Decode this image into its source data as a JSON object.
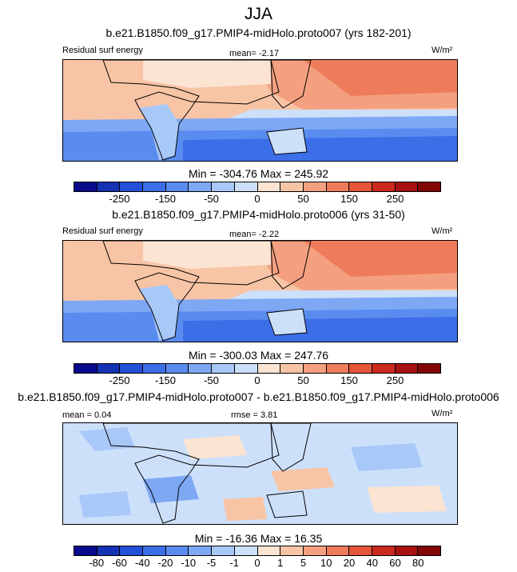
{
  "title": "JJA",
  "panels": [
    {
      "subtitle": "b.e21.B1850.f09_g17.PMIP4-midHolo.proto007 (yrs 182-201)",
      "left_label": "Residual surf energy",
      "center_label": "mean=  -2.17",
      "right_label": "W/m²",
      "minmax": "Min = -304.76 Max = 245.92"
    },
    {
      "subtitle": "b.e21.B1850.f09_g17.PMIP4-midHolo.proto006 (yrs 31-50)",
      "left_label": "Residual surf energy",
      "center_label": "mean=  -2.22",
      "right_label": "W/m²",
      "minmax": "Min = -300.03 Max = 247.76"
    },
    {
      "subtitle": "b.e21.B1850.f09_g17.PMIP4-midHolo.proto007 - b.e21.B1850.f09_g17.PMIP4-midHolo.proto006",
      "left_label": "mean =  0.04",
      "center_label": "rmse =  3.81",
      "right_label": "W/m²",
      "minmax": "Min = -16.36 Max =  16.35"
    }
  ],
  "colorbar_abs": {
    "colors": [
      "#0a0a8c",
      "#1432b4",
      "#2350d8",
      "#3c6ee8",
      "#5a8cf0",
      "#7ea8f4",
      "#a8c8f8",
      "#cde0fa",
      "#fbe4d2",
      "#f8c4a6",
      "#f4a080",
      "#ee7c5a",
      "#e4553a",
      "#cc2a1e",
      "#a81210",
      "#820606"
    ],
    "ticks": [
      "-250",
      "-150",
      "-50",
      "0",
      "50",
      "150",
      "250"
    ]
  },
  "colorbar_diff": {
    "colors": [
      "#0a0a8c",
      "#1432b4",
      "#2350d8",
      "#3c6ee8",
      "#5a8cf0",
      "#7ea8f4",
      "#a8c8f8",
      "#cde0fa",
      "#fbe4d2",
      "#f8c4a6",
      "#f4a080",
      "#ee7c5a",
      "#e4553a",
      "#cc2a1e",
      "#a81210",
      "#820606"
    ],
    "ticks": [
      "-80",
      "-60",
      "-40",
      "-20",
      "-10",
      "-5",
      "-1",
      "0",
      "1",
      "5",
      "10",
      "20",
      "40",
      "60",
      "80"
    ]
  }
}
